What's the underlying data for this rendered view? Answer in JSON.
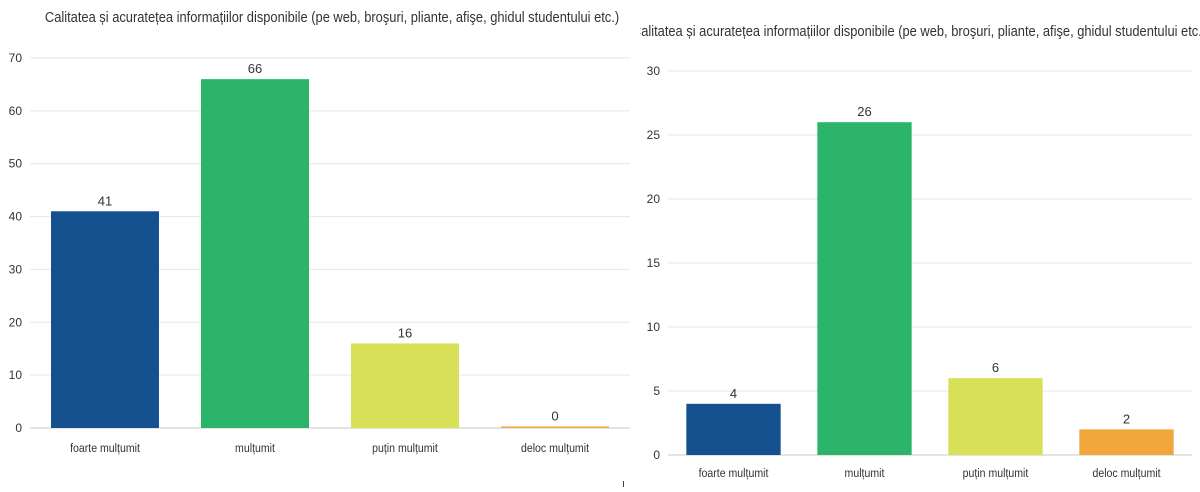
{
  "chart_data": [
    {
      "type": "bar",
      "title": "Calitatea și acuratețea informațiilor disponibile (pe web, broşuri, pliante, afişe, ghidul studentului etc.)",
      "xlabel": "",
      "ylabel": "",
      "categories": [
        "foarte mulțumit",
        "mulțumit",
        "puțin mulțumit",
        "deloc mulțumit"
      ],
      "values": [
        41,
        66,
        16,
        0
      ],
      "colors": [
        "#15508f",
        "#2bb46a",
        "#d8e058",
        "#f0a63a"
      ],
      "ylim": [
        0,
        70
      ],
      "yticks": [
        0,
        10,
        20,
        30,
        40,
        50,
        60,
        70
      ],
      "grid": true,
      "legend": "none"
    },
    {
      "type": "bar",
      "title": "Calitatea și acuratețea informațiilor disponibile (pe web, broşuri, pliante, afişe, ghidul studentului etc.)",
      "xlabel": "",
      "ylabel": "",
      "categories": [
        "foarte mulțumit",
        "mulțumit",
        "puțin mulțumit",
        "deloc mulțumit"
      ],
      "values": [
        4,
        26,
        6,
        2
      ],
      "colors": [
        "#15508f",
        "#2bb46a",
        "#d8e058",
        "#f0a63a"
      ],
      "ylim": [
        0,
        30
      ],
      "yticks": [
        0,
        5,
        10,
        15,
        20,
        25,
        30
      ],
      "grid": true,
      "legend": "none"
    }
  ]
}
